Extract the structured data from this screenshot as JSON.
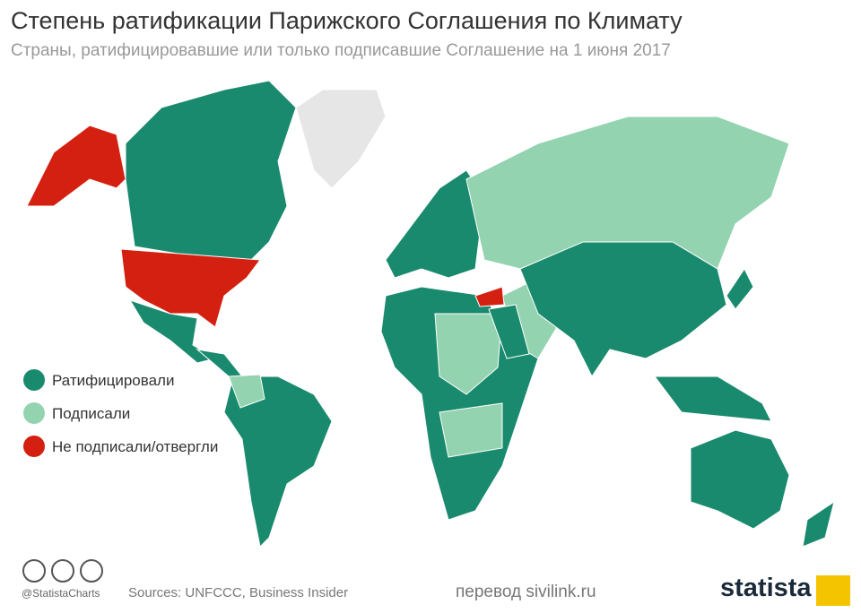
{
  "header": {
    "title": "Степень ратификации Парижского Соглашения по Климату",
    "subtitle": "Страны, ратифицировавшие или только подписавшие Соглашение на 1 июня 2017"
  },
  "legend": [
    {
      "label": "Ратифицировали",
      "color": "#1a8a6e"
    },
    {
      "label": "Подписали",
      "color": "#93d3b0"
    },
    {
      "label": "Не подписали/отвергли",
      "color": "#d42010"
    }
  ],
  "footer": {
    "handle": "@StatistaCharts",
    "sources": "Sources: UNFCCC, Business Insider",
    "translation": "перевод sivilink.ru",
    "brand": "statista"
  }
}
